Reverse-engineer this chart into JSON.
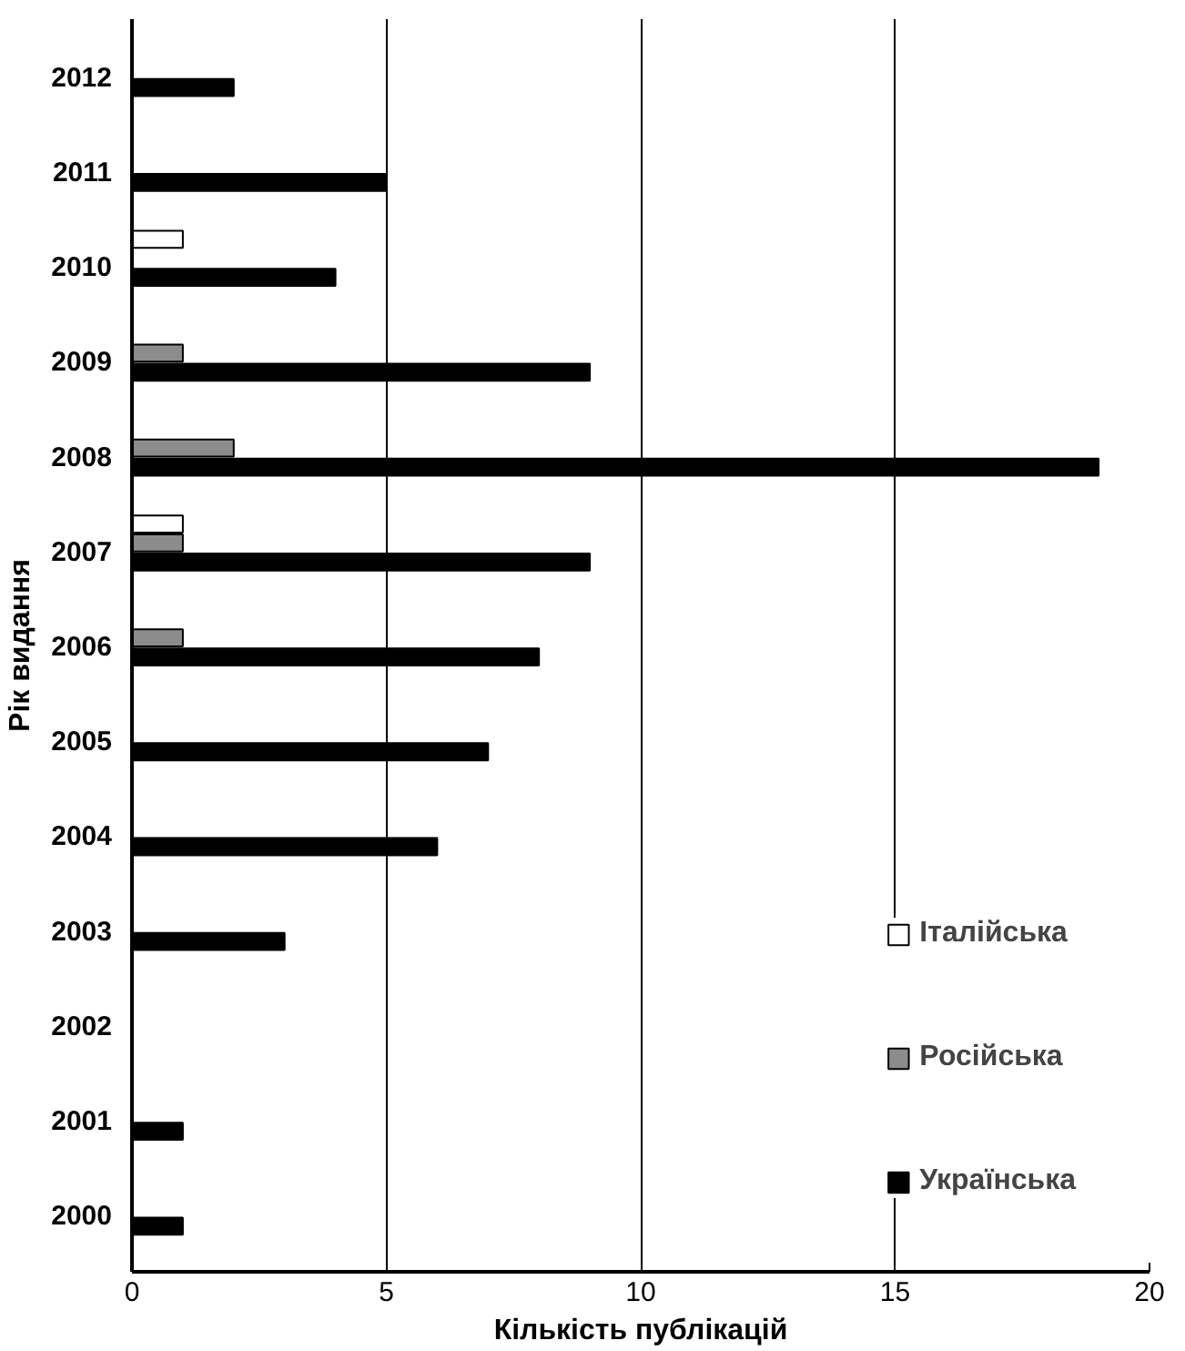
{
  "chart_data": {
    "type": "bar",
    "orientation": "horizontal",
    "xlabel": "Кількість публікацій",
    "ylabel": "Рік видання",
    "categories": [
      "2012",
      "2011",
      "2010",
      "2009",
      "2008",
      "2007",
      "2006",
      "2005",
      "2004",
      "2003",
      "2002",
      "2001",
      "2000"
    ],
    "series": [
      {
        "name": "Італійська",
        "color": "#ffffff",
        "values": [
          null,
          null,
          1,
          null,
          null,
          1,
          null,
          null,
          null,
          null,
          null,
          null,
          null
        ]
      },
      {
        "name": "Російська",
        "color": "#8c8c8c",
        "values": [
          null,
          null,
          null,
          1,
          2,
          1,
          1,
          null,
          null,
          null,
          null,
          null,
          null
        ]
      },
      {
        "name": "Українська",
        "color": "#000000",
        "values": [
          2,
          5,
          4,
          9,
          19,
          9,
          8,
          7,
          6,
          3,
          null,
          1,
          1
        ]
      }
    ],
    "xlim": [
      0,
      20
    ],
    "xticks": [
      0,
      5,
      10,
      15,
      20
    ],
    "grid": "x",
    "legend": "bottom right"
  }
}
